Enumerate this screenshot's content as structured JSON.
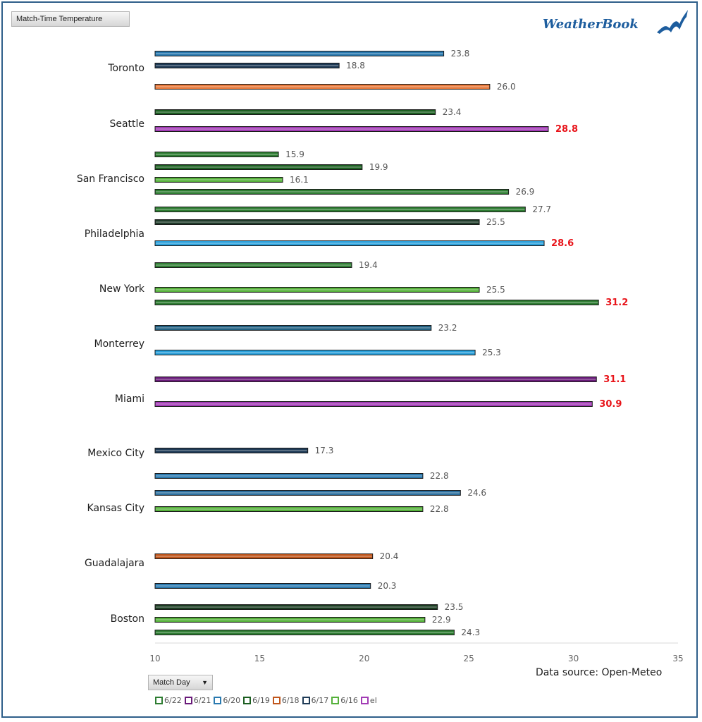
{
  "header": {
    "field_button": "Match-Time Temperature",
    "brand": "WeatherBook"
  },
  "footer": {
    "source": "Data source: Open-Meteo",
    "filter_button": "Match Day"
  },
  "legend": [
    {
      "label": "6/22",
      "color": "#2e7d32"
    },
    {
      "label": "6/21",
      "color": "#6a1b7a"
    },
    {
      "label": "6/20",
      "color": "#2a7ab0"
    },
    {
      "label": "6/19",
      "color": "#1b5e20"
    },
    {
      "label": "6/18",
      "color": "#c0561c"
    },
    {
      "label": "6/17",
      "color": "#1f3b57"
    },
    {
      "label": "6/16",
      "color": "#55b13a"
    },
    {
      "label": "el",
      "color": "#a23bb5"
    }
  ],
  "chart_data": {
    "type": "bar",
    "orientation": "horizontal",
    "xlim": [
      10,
      35
    ],
    "xticks": [
      10,
      15,
      20,
      25,
      30,
      35
    ],
    "grid": false,
    "legend_position": "bottom",
    "categories": [
      "Toronto",
      "Seattle",
      "San Francisco",
      "Philadelphia",
      "New York",
      "Monterrey",
      "Miami",
      "Mexico City",
      "Kansas City",
      "Guadalajara",
      "Boston"
    ],
    "bars": [
      {
        "category": "Toronto",
        "value": 23.8,
        "color": "#2a7ab0"
      },
      {
        "category": "Toronto",
        "value": 18.8,
        "color": "#1f3b57"
      },
      {
        "category": "Toronto",
        "value": 26.0,
        "color": "#e87a3c"
      },
      {
        "category": "Seattle",
        "value": 23.4,
        "color": "#1b5e20"
      },
      {
        "category": "Seattle",
        "value": 28.8,
        "color": "#a23bb5",
        "highlight": true
      },
      {
        "category": "San Francisco",
        "value": 15.9,
        "color": "#2e7d32"
      },
      {
        "category": "San Francisco",
        "value": 19.9,
        "color": "#1b5e20"
      },
      {
        "category": "San Francisco",
        "value": 16.1,
        "color": "#55b13a"
      },
      {
        "category": "San Francisco",
        "value": 26.9,
        "color": "#2e7d32"
      },
      {
        "category": "Philadelphia",
        "value": 27.7,
        "color": "#2e7d32"
      },
      {
        "category": "Philadelphia",
        "value": 25.5,
        "color": "#1f3b2a"
      },
      {
        "category": "Philadelphia",
        "value": 28.6,
        "color": "#2aa0db",
        "highlight": true
      },
      {
        "category": "New York",
        "value": 19.4,
        "color": "#2e7d32"
      },
      {
        "category": "New York",
        "value": 25.5,
        "color": "#55b13a"
      },
      {
        "category": "New York",
        "value": 31.2,
        "color": "#2e7d32",
        "highlight": true
      },
      {
        "category": "Monterrey",
        "value": 23.2,
        "color": "#1f5f80"
      },
      {
        "category": "Monterrey",
        "value": 25.3,
        "color": "#2aa0db"
      },
      {
        "category": "Miami",
        "value": 31.1,
        "color": "#6a1b7a",
        "highlight": true
      },
      {
        "category": "Miami",
        "value": 30.9,
        "color": "#a23bb5",
        "highlight": true
      },
      {
        "category": "Mexico City",
        "value": 17.3,
        "color": "#1f3b57"
      },
      {
        "category": "Kansas City",
        "value": 22.8,
        "color": "#2a7ab0"
      },
      {
        "category": "Kansas City",
        "value": 24.6,
        "color": "#2a6e9e"
      },
      {
        "category": "Kansas City",
        "value": 22.8,
        "color": "#55b13a"
      },
      {
        "category": "Guadalajara",
        "value": 20.4,
        "color": "#c0561c"
      },
      {
        "category": "Boston",
        "value": 20.3,
        "color": "#2a7ab0"
      },
      {
        "category": "Boston",
        "value": 23.5,
        "color": "#1b3d22"
      },
      {
        "category": "Boston",
        "value": 22.9,
        "color": "#55b13a"
      },
      {
        "category": "Boston",
        "value": 24.3,
        "color": "#2e7d32"
      }
    ]
  }
}
